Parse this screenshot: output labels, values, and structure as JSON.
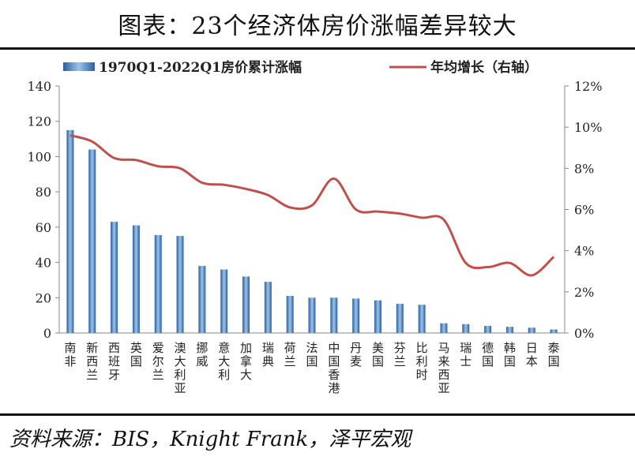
{
  "title": "图表：23个经济体房价涨幅差异较大",
  "source": "资料来源：BIS，Knight Frank，泽平宏观",
  "chart_data": {
    "type": "bar+line",
    "categories": [
      "南非",
      "新西兰",
      "西班牙",
      "英国",
      "爱尔兰",
      "澳大利亚",
      "挪威",
      "意大利",
      "加拿大",
      "瑞典",
      "荷兰",
      "法国",
      "中国香港",
      "丹麦",
      "美国",
      "芬兰",
      "比利时",
      "马来西亚",
      "瑞士",
      "德国",
      "韩国",
      "日本",
      "泰国"
    ],
    "series": [
      {
        "name": "1970Q1-2022Q1房价累计涨幅",
        "type": "bar",
        "axis": "left",
        "color": "#4a86c5",
        "values": [
          115,
          104,
          63,
          61,
          55.5,
          55,
          38,
          36,
          32,
          29,
          21,
          20,
          20,
          19.5,
          18.5,
          16.5,
          16,
          5.5,
          5,
          4,
          3.5,
          3,
          2
        ]
      },
      {
        "name": "年均增长（右轴）",
        "type": "line",
        "axis": "right",
        "color": "#c0504d",
        "values": [
          9.6,
          9.3,
          8.5,
          8.4,
          8.1,
          8.0,
          7.3,
          7.2,
          7.0,
          6.7,
          6.1,
          6.2,
          7.5,
          6.0,
          5.9,
          5.8,
          5.6,
          5.5,
          3.4,
          3.2,
          3.4,
          2.8,
          3.7
        ]
      }
    ],
    "left_axis": {
      "ylim": [
        0,
        140
      ],
      "ticks": [
        "0",
        "20",
        "40",
        "60",
        "80",
        "100",
        "120",
        "140"
      ]
    },
    "right_axis": {
      "ylim": [
        0,
        12
      ],
      "ticks": [
        "0%",
        "2%",
        "4%",
        "6%",
        "8%",
        "10%",
        "12%"
      ]
    },
    "legend": "top",
    "grid": false
  }
}
